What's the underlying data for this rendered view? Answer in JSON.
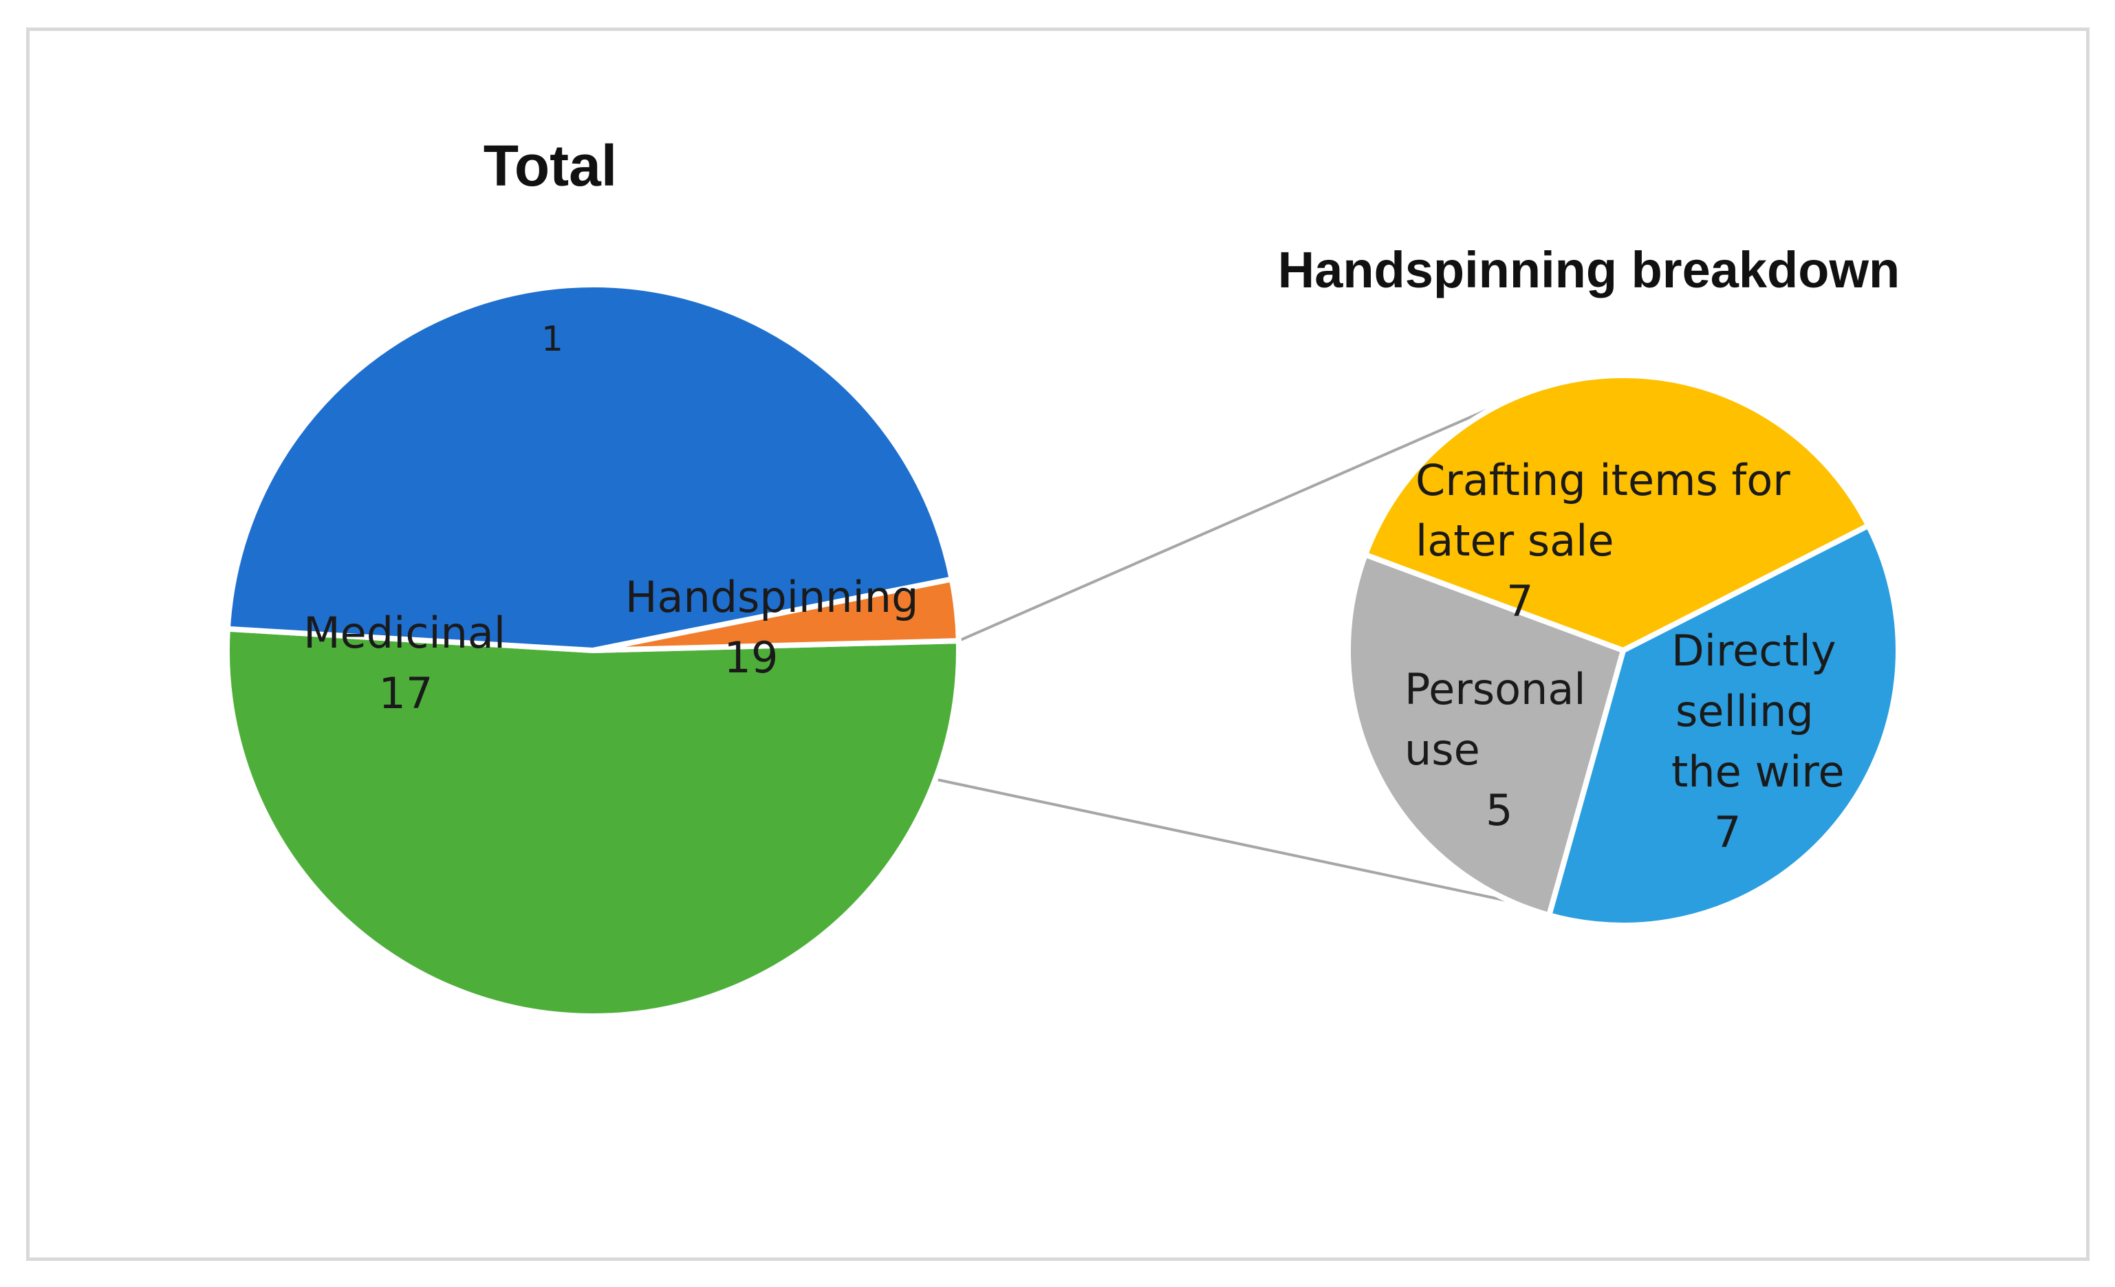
{
  "chart_data": [
    {
      "type": "pie",
      "title": "Total",
      "slices": [
        {
          "label": "Handspinning",
          "value": 19,
          "color": "#4daf3a"
        },
        {
          "label": "Medicinal",
          "value": 17,
          "color": "#1f6fcf"
        },
        {
          "label": "",
          "value": 1,
          "color": "#f07c2c"
        }
      ]
    },
    {
      "type": "pie",
      "title": "Handspinning breakdown",
      "slices": [
        {
          "label": "Directly selling the wire",
          "value": 7,
          "color": "#2b9ee0"
        },
        {
          "label": "Personal use",
          "value": 5,
          "color": "#b3b3b3"
        },
        {
          "label": "Crafting items for later sale",
          "value": 7,
          "color": "#ffc000"
        }
      ]
    }
  ]
}
